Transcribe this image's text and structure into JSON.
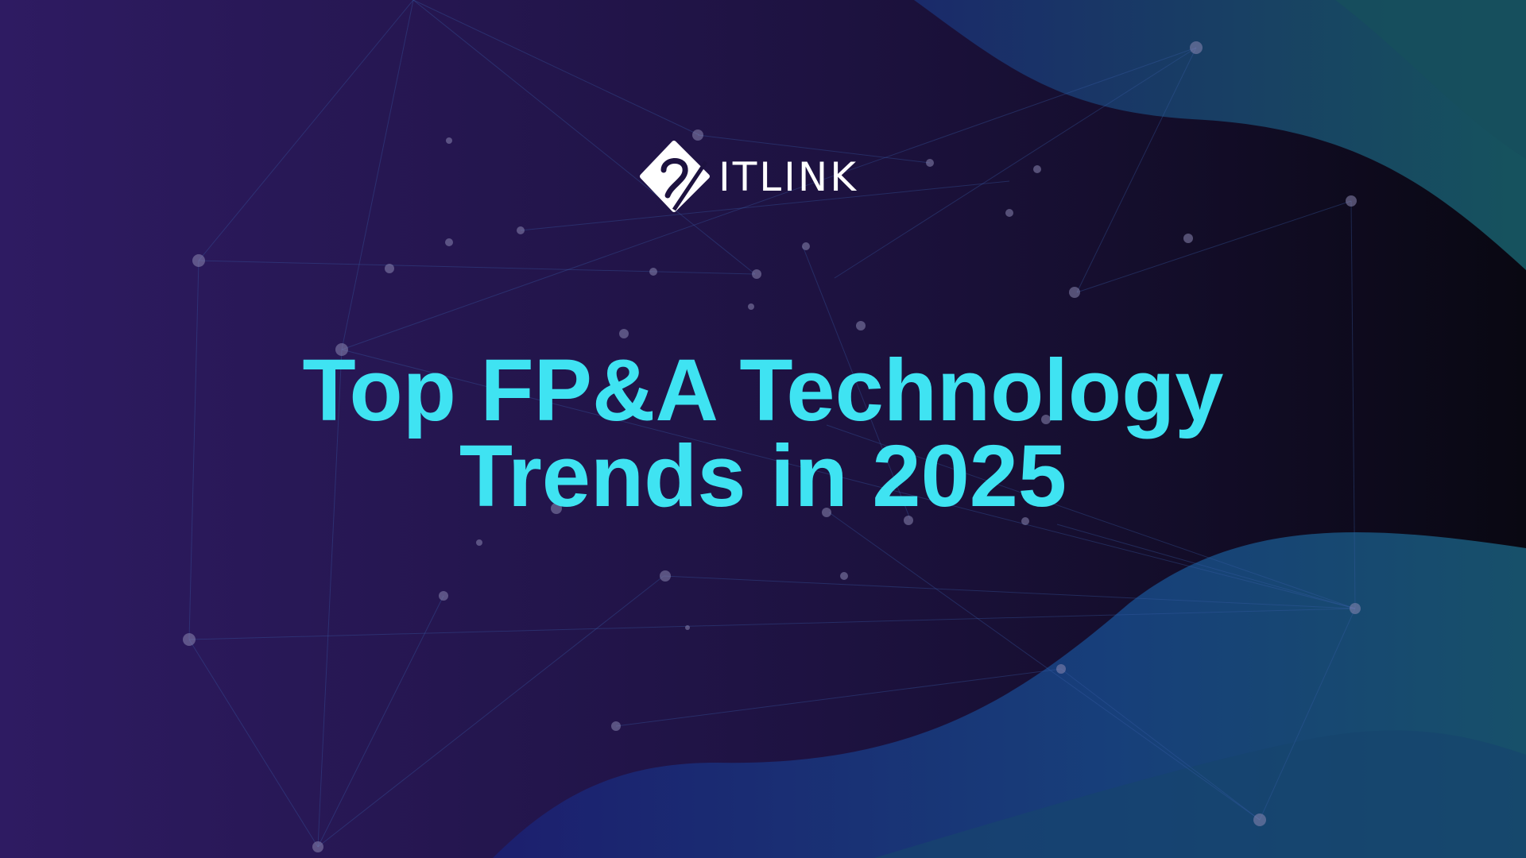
{
  "logo": {
    "text": "ITLINK"
  },
  "headline": {
    "lines": [
      "Top FP&A Technology",
      "Trends in 2025"
    ]
  }
}
